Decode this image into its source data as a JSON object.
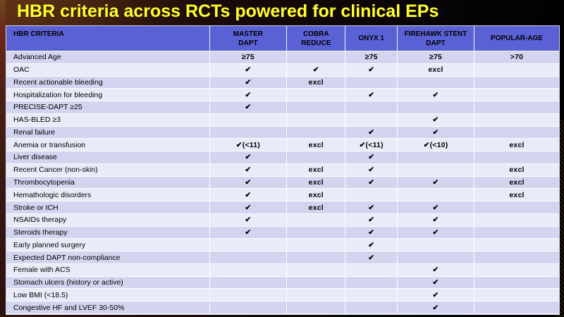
{
  "slide_title": "HBR criteria across RCTs powered for clinical EPs",
  "colors": {
    "title_text": "#ffff2e",
    "header_bg": "#5a61d4",
    "row_odd_bg": "#d3d4ef",
    "row_even_bg": "#eaebf8",
    "cell_text": "#000000",
    "background_dark": "#120806",
    "left_stripe": "#4a2014"
  },
  "table": {
    "columns": [
      [
        "HBR CRITERIA"
      ],
      [
        "MASTER",
        "DAPT"
      ],
      [
        "COBRA",
        "REDUCE"
      ],
      [
        "ONYX 1"
      ],
      [
        "FIREHAWK STENT",
        "DAPT"
      ],
      [
        "POPULAR-AGE"
      ]
    ],
    "rows": [
      {
        "criteria": "Advanced Age",
        "cells": [
          "≥75",
          "",
          "≥75",
          "≥75",
          ">70"
        ]
      },
      {
        "criteria": "OAC",
        "cells": [
          "✔",
          "✔",
          "✔",
          "excl",
          ""
        ]
      },
      {
        "criteria": "Recent actionable bleeding",
        "cells": [
          "✔",
          "excl",
          "",
          "",
          ""
        ]
      },
      {
        "criteria": "Hospitalization for bleeding",
        "cells": [
          "✔",
          "",
          "✔",
          "✔",
          ""
        ]
      },
      {
        "criteria": "PRECISE-DAPT ≥25",
        "cells": [
          "✔",
          "",
          "",
          "",
          ""
        ]
      },
      {
        "criteria": "HAS-BLED ≥3",
        "cells": [
          "",
          "",
          "",
          "✔",
          ""
        ]
      },
      {
        "criteria": "Renal failure",
        "cells": [
          "",
          "",
          "✔",
          "✔",
          ""
        ]
      },
      {
        "criteria": "Anemia or transfusion",
        "cells": [
          "✔(<11)",
          "excl",
          "✔(<11)",
          "✔(<10)",
          "excl"
        ]
      },
      {
        "criteria": "Liver disease",
        "cells": [
          "✔",
          "",
          "✔",
          "",
          ""
        ]
      },
      {
        "criteria": "Recent Cancer (non-skin)",
        "cells": [
          "✔",
          "excl",
          "✔",
          "",
          "excl"
        ]
      },
      {
        "criteria": "Thrombocytopenia",
        "cells": [
          "✔",
          "excl",
          "✔",
          "✔",
          "excl"
        ]
      },
      {
        "criteria": "Hemathologic disorders",
        "cells": [
          "✔",
          "excl",
          "",
          "",
          "excl"
        ]
      },
      {
        "criteria": "Stroke or ICH",
        "cells": [
          "✔",
          "excl",
          "✔",
          "✔",
          ""
        ]
      },
      {
        "criteria": "NSAIDs therapy",
        "cells": [
          "✔",
          "",
          "✔",
          "✔",
          ""
        ]
      },
      {
        "criteria": "Steroids therapy",
        "cells": [
          "✔",
          "",
          "✔",
          "✔",
          ""
        ]
      },
      {
        "criteria": "Early planned surgery",
        "cells": [
          "",
          "",
          "✔",
          "",
          ""
        ]
      },
      {
        "criteria": "Expected DAPT non-compliance",
        "cells": [
          "",
          "",
          "✔",
          "",
          ""
        ]
      },
      {
        "criteria": "Female with ACS",
        "cells": [
          "",
          "",
          "",
          "✔",
          ""
        ]
      },
      {
        "criteria": "Stomach ulcers (history or active)",
        "cells": [
          "",
          "",
          "",
          "✔",
          ""
        ]
      },
      {
        "criteria": "Low BMI (<18.5)",
        "cells": [
          "",
          "",
          "",
          "✔",
          ""
        ]
      },
      {
        "criteria": "Congestive HF and LVEF 30-50%",
        "cells": [
          "",
          "",
          "",
          "✔",
          ""
        ]
      }
    ]
  }
}
